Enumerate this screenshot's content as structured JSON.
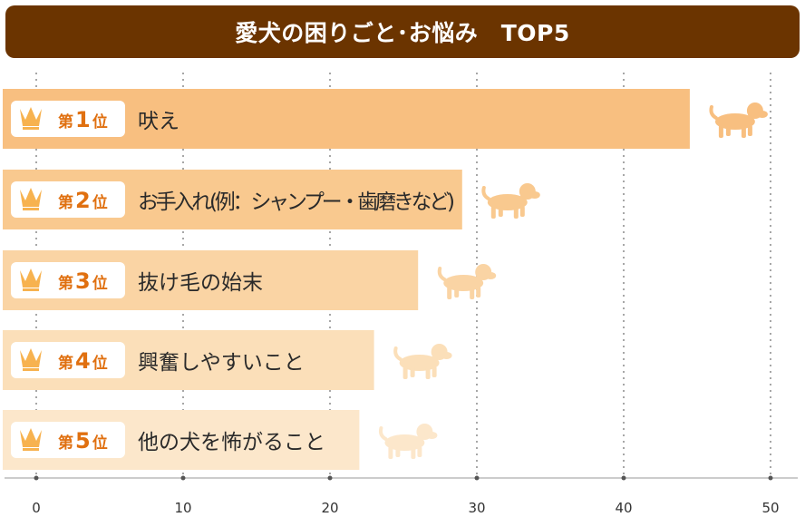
{
  "title": "愛犬の困りごと･お悩み　TOP5",
  "colors": {
    "title_bg": "#6b3400",
    "bars": [
      "#f8bf80",
      "#f9c98f",
      "#fad4a4",
      "#fbdfb9",
      "#fce7cb"
    ],
    "dog": [
      "#f8bf80",
      "#f9c98f",
      "#fad4a4",
      "#fbdfb9",
      "#fce7cb"
    ],
    "rank_text": "#e07010",
    "crown": "#f7b24f"
  },
  "icons": {
    "rank": "crown-icon",
    "row": "dog-icon"
  },
  "chart_data": {
    "type": "bar",
    "orientation": "horizontal",
    "title": "愛犬の困りごと･お悩み　TOP5",
    "categories": [
      "吠え",
      "お手入れ(例：シャンプー・歯磨きなど)",
      "抜け毛の始末",
      "興奮しやすいこと",
      "他の犬を怖がること"
    ],
    "ranks": [
      "第1位",
      "第2位",
      "第3位",
      "第4位",
      "第5位"
    ],
    "rank_parts": [
      {
        "pre": "第",
        "num": "1",
        "post": "位"
      },
      {
        "pre": "第",
        "num": "2",
        "post": "位"
      },
      {
        "pre": "第",
        "num": "3",
        "post": "位"
      },
      {
        "pre": "第",
        "num": "4",
        "post": "位"
      },
      {
        "pre": "第",
        "num": "5",
        "post": "位"
      }
    ],
    "values": [
      44.5,
      29,
      26,
      23,
      22
    ],
    "xlim": [
      0,
      50
    ],
    "xticks": [
      0,
      10,
      20,
      30,
      40,
      50
    ],
    "grid": true,
    "xlabel": "",
    "ylabel": ""
  }
}
